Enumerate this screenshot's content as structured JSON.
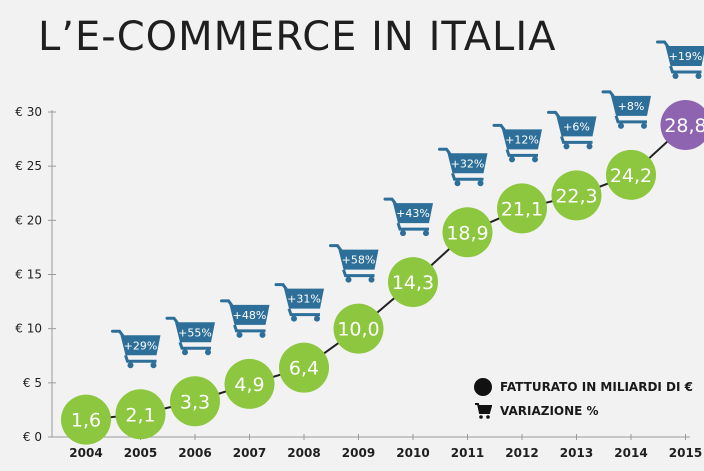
{
  "title": "L’E-COMMERCE IN ITALIA",
  "legend": {
    "revenue_label": "FATTURATO IN MILIARDI DI €",
    "variation_label": "VARIAZIONE %"
  },
  "colors": {
    "point": "#8dc63f",
    "point_last": "#8e64b0",
    "cart": "#2e6f99",
    "line": "#222222",
    "grid": "#c9c9c9",
    "text": "#1f1f1f"
  },
  "icons": [
    "shopping-cart-icon",
    "legend-dot-icon"
  ],
  "chart_data": {
    "type": "scatter",
    "title": "L’E-COMMERCE IN ITALIA",
    "xlabel": "",
    "ylabel": "",
    "ylim": [
      0,
      30
    ],
    "yticks": [
      "€ 0",
      "€ 5",
      "€ 10",
      "€ 15",
      "€ 20",
      "€ 25",
      "€ 30"
    ],
    "categories": [
      "2004",
      "2005",
      "2006",
      "2007",
      "2008",
      "2009",
      "2010",
      "2011",
      "2012",
      "2013",
      "2014",
      "2015"
    ],
    "values": [
      1.6,
      2.1,
      3.3,
      4.9,
      6.4,
      10.0,
      14.3,
      18.9,
      21.1,
      22.3,
      24.2,
      28.8
    ],
    "value_labels": [
      "1,6",
      "2,1",
      "3,3",
      "4,9",
      "6,4",
      "10,0",
      "14,3",
      "18,9",
      "21,1",
      "22,3",
      "24,2",
      "28,8"
    ],
    "variations": [
      "",
      "+29%",
      "+55%",
      "+48%",
      "+31%",
      "+58%",
      "+43%",
      "+32%",
      "+12%",
      "+6%",
      "+8%",
      "+19%"
    ],
    "legend_placement": "bottom-right",
    "grid": false
  }
}
